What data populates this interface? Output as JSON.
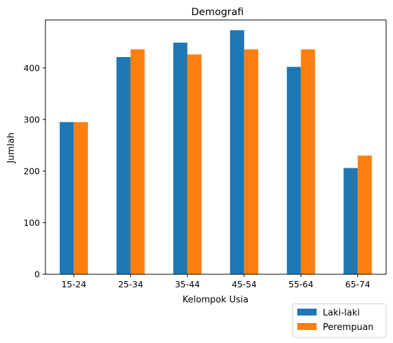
{
  "chart_data": {
    "type": "bar",
    "title": "Demografi",
    "xlabel": "Kelompok Usia",
    "ylabel": "Jumlah",
    "categories": [
      "15-24",
      "25-34",
      "35-44",
      "45-54",
      "55-64",
      "65-74"
    ],
    "series": [
      {
        "name": "Laki-laki",
        "color": "#1f77b4",
        "values": [
          295,
          421,
          449,
          473,
          402,
          206
        ]
      },
      {
        "name": "Perempuan",
        "color": "#ff7f0e",
        "values": [
          295,
          436,
          426,
          436,
          436,
          230
        ]
      }
    ],
    "ylim": [
      0,
      493
    ],
    "yticks": [
      0,
      100,
      200,
      300,
      400
    ],
    "grid": false,
    "legend_position": "bottom-right, outside plot"
  }
}
